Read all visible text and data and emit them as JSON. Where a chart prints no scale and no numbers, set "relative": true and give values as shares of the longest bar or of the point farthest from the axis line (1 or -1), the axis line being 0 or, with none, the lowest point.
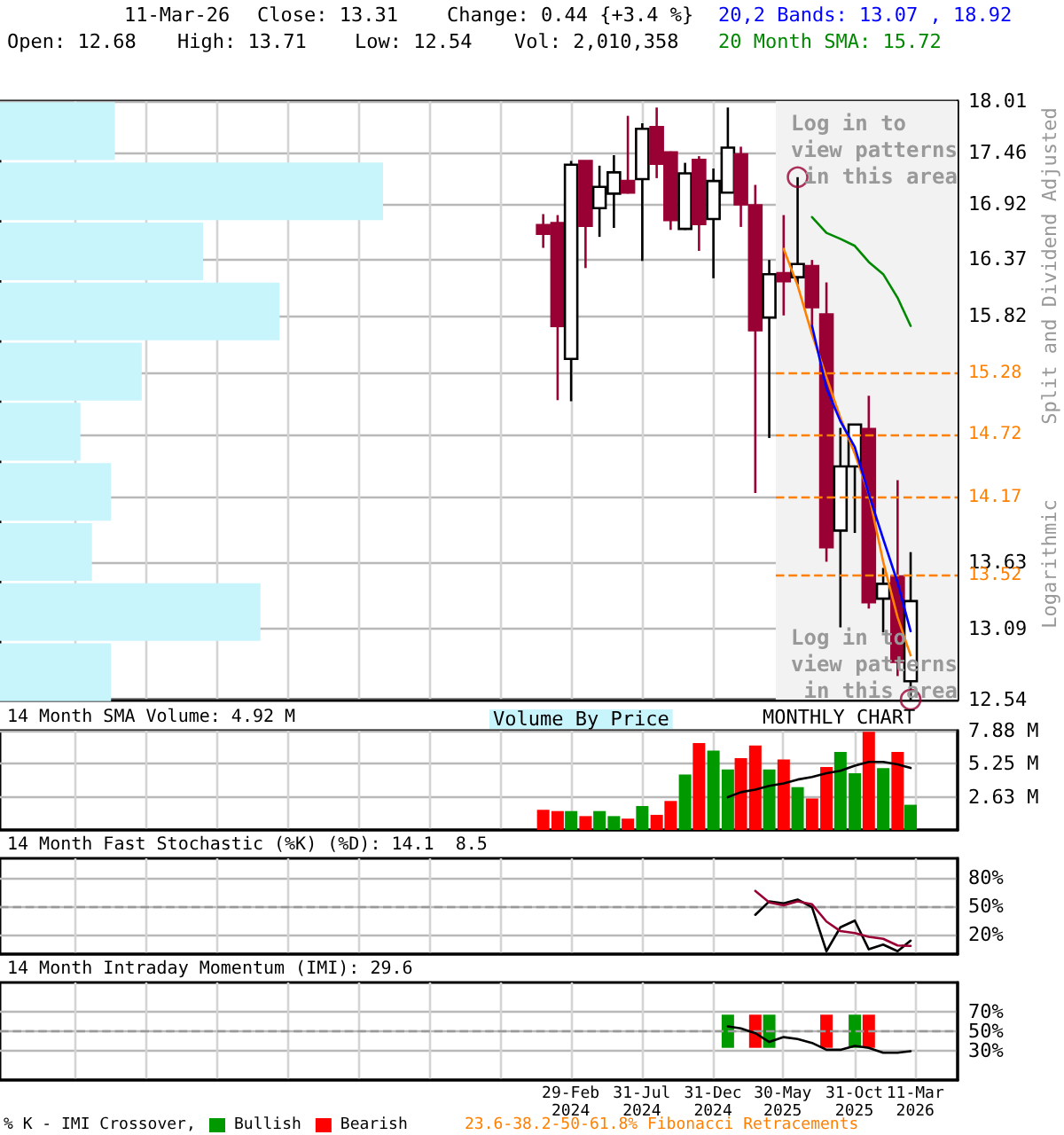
{
  "chart_data": [
    {
      "type": "bar",
      "orientation": "horizontal",
      "relative": true,
      "categories": [
        null,
        null,
        null,
        null,
        null,
        null,
        null,
        null,
        null,
        null
      ],
      "color": "#c8f4fc",
      "values": [
        0.3,
        1,
        0.53,
        0.73,
        0.37,
        0.21,
        0.29,
        0.24,
        0.68,
        0.29
      ],
      "annotations": [
        "Volume By Price"
      ]
    },
    {
      "type": "candlestick",
      "log": true,
      "grid": true,
      "tick_labels": "y",
      "ylabel": "Split and Dividend Adjusted",
      "x": [
        "2024-01",
        "2024-02",
        "2024-03",
        "2024-04",
        "2024-05",
        "2024-06",
        "2024-07",
        "2024-08",
        "2024-09",
        "2024-10",
        "2024-11",
        "2024-12",
        "2025-01",
        "2025-02",
        "2025-03",
        "2025-04",
        "2025-05",
        "2025-06",
        "2025-07",
        "2025-08",
        "2025-09",
        "2025-10",
        "2025-11",
        "2025-12",
        "2026-01",
        "2026-02",
        "2026-03"
      ],
      "ohlc": [
        [
          16.71,
          16.82,
          16.48,
          16.62
        ],
        [
          16.73,
          16.81,
          15.03,
          15.72
        ],
        [
          15.41,
          17.37,
          15.02,
          17.33
        ],
        [
          17.37,
          17.37,
          16.28,
          16.7
        ],
        [
          16.88,
          17.32,
          16.59,
          17.1
        ],
        [
          17.03,
          17.43,
          16.68,
          17.25
        ],
        [
          17.16,
          17.85,
          17.03,
          17.04
        ],
        [
          17.18,
          17.77,
          16.35,
          17.71
        ],
        [
          17.73,
          17.94,
          17.19,
          17.34
        ],
        [
          17.46,
          17.47,
          16.66,
          16.76
        ],
        [
          16.67,
          17.35,
          16.66,
          17.24
        ],
        [
          17.38,
          17.42,
          16.45,
          16.72
        ],
        [
          16.77,
          17.29,
          16.18,
          17.16
        ],
        [
          17.04,
          17.94,
          17.04,
          17.51
        ],
        [
          17.44,
          17.52,
          16.69,
          16.92
        ],
        [
          16.91,
          17.12,
          14.21,
          15.68
        ],
        [
          15.8,
          16.36,
          14.69,
          16.22
        ],
        [
          16.23,
          16.81,
          15.82,
          16.15
        ],
        [
          16.19,
          17.2,
          16.12,
          16.32
        ],
        [
          16.3,
          16.36,
          15.72,
          15.9
        ],
        [
          15.83,
          16.14,
          13.63,
          13.75
        ],
        [
          13.89,
          14.78,
          13.1,
          14.44
        ],
        [
          14.44,
          14.81,
          13.87,
          14.81
        ],
        [
          14.77,
          15.07,
          13.25,
          13.3
        ],
        [
          13.33,
          13.58,
          13.06,
          13.45
        ],
        [
          13.51,
          14.32,
          12.72,
          12.83
        ],
        [
          12.68,
          13.71,
          12.54,
          13.31
        ]
      ],
      "colors": [
        "#990033",
        "#990033",
        "#ffffff",
        "#990033",
        "#ffffff",
        "#ffffff",
        "#990033",
        "#ffffff",
        "#990033",
        "#990033",
        "#ffffff",
        "#990033",
        "#ffffff",
        "#ffffff",
        "#990033",
        "#990033",
        "#ffffff",
        "#990033",
        "#ffffff",
        "#990033",
        "#990033",
        "#ffffff",
        "#ffffff",
        "#990033",
        "#ffffff",
        "#990033",
        "#ffffff"
      ],
      "series": [
        {
          "type": "line",
          "color": "#008800",
          "marker": "none",
          "line_style": "solid",
          "x": [
            "2025-08",
            "2025-09",
            "2025-10",
            "2025-11",
            "2025-12",
            "2026-01",
            "2026-02",
            "2026-03"
          ],
          "values": [
            16.79,
            16.63,
            16.57,
            16.5,
            16.34,
            16.22,
            15.99,
            15.72
          ]
        },
        {
          "type": "line",
          "color": "#ff8000",
          "marker": "none",
          "line_style": "solid",
          "x": [
            "2025-06",
            "2025-07",
            "2025-08",
            "2025-09",
            "2025-10",
            "2025-11",
            "2025-12",
            "2026-01",
            "2026-02",
            "2026-03"
          ],
          "values": [
            16.47,
            16.11,
            15.64,
            15.24,
            14.87,
            14.55,
            14.2,
            13.63,
            13.18,
            12.88
          ]
        },
        {
          "type": "line",
          "color": "#0000ff",
          "marker": "none",
          "line_style": "solid",
          "x": [
            "2025-08",
            "2025-09",
            "2025-10",
            "2025-11",
            "2025-12",
            "2026-01",
            "2026-02",
            "2026-03"
          ],
          "values": [
            15.72,
            15.14,
            14.84,
            14.61,
            14.2,
            13.82,
            13.46,
            13.07
          ]
        },
        {
          "type": "scatter",
          "color": "#990033",
          "marker": "circle",
          "x": [
            "2025-07",
            "2026-03"
          ],
          "values": [
            17.2,
            12.54
          ]
        }
      ],
      "xlim": [
        "2020-10-20",
        "2026-06-10"
      ],
      "xticks": [
        {
          "value": "2021-03-31",
          "label": null
        },
        {
          "value": "2021-08-31",
          "label": null
        },
        {
          "value": "2022-01-31",
          "label": null
        },
        {
          "value": "2022-06-30",
          "label": null
        },
        {
          "value": "2022-11-30",
          "label": null
        },
        {
          "value": "2023-04-30",
          "label": null
        },
        {
          "value": "2023-09-30",
          "label": null
        },
        {
          "value": "2024-02-29",
          "label": null
        },
        {
          "value": "2024-07-31",
          "label": null
        },
        {
          "value": "2024-12-31",
          "label": null
        },
        {
          "value": "2025-05-30",
          "label": null
        },
        {
          "value": "2025-10-31",
          "label": null
        },
        {
          "value": "2026-03-11",
          "label": null
        }
      ],
      "ylim": [
        12.54,
        18.01
      ],
      "yticks": [
        12.54,
        13.09,
        13.63,
        {
          "value": 14.17,
          "label": null
        },
        {
          "value": 14.72,
          "label": null
        },
        {
          "value": 15.28,
          "label": null
        },
        15.82,
        16.37,
        16.92,
        17.46,
        18.01
      ],
      "ref_lines": [
        {
          "axis": "y",
          "value": 15.28,
          "label": "15.28",
          "color": "#ff8000",
          "line_style": "dashed"
        },
        {
          "axis": "y",
          "value": 14.72,
          "label": "14.72",
          "color": "#ff8000",
          "line_style": "dashed"
        },
        {
          "axis": "y",
          "value": 14.17,
          "label": "14.17",
          "color": "#ff8000",
          "line_style": "dashed"
        },
        {
          "axis": "y",
          "value": 13.52,
          "label": "13.52",
          "color": "#ff8000",
          "line_style": "dashed"
        }
      ],
      "bands": [
        {
          "axis": "x",
          "from": "2025-05-15",
          "to": "2026-06-10",
          "color": "#f2f2f2"
        }
      ],
      "annotations": [
        "11-Mar-26",
        "Close: 13.31",
        "Change: 0.44 {+3.4 %}",
        "Open: 12.68",
        "High: 13.71",
        "Low: 12.54",
        "Vol: 2,010,358",
        "20,2 Bands: 13.07 , 18.92",
        "20 Month SMA: 15.72",
        "Log in to view patterns in this area",
        "Log in to view patterns in this area",
        "Logarithmic"
      ]
    },
    {
      "type": "bar",
      "title": "14 Month SMA Volume: 4.92 M",
      "grid": true,
      "tick_labels": "y",
      "x": [
        "2024-01",
        "2024-02",
        "2024-03",
        "2024-04",
        "2024-05",
        "2024-06",
        "2024-07",
        "2024-08",
        "2024-09",
        "2024-10",
        "2024-11",
        "2024-12",
        "2025-01",
        "2025-02",
        "2025-03",
        "2025-04",
        "2025-05",
        "2025-06",
        "2025-07",
        "2025-08",
        "2025-09",
        "2025-10",
        "2025-11",
        "2025-12",
        "2026-01",
        "2026-02",
        "2026-03"
      ],
      "values": [
        1.6,
        1.5,
        1.5,
        1.1,
        1.5,
        1.1,
        0.9,
        1.9,
        1.2,
        2.3,
        4.4,
        6.9,
        6.3,
        4.8,
        5.7,
        6.7,
        4.8,
        5.6,
        3.4,
        2.5,
        5.0,
        6.2,
        4.5,
        7.8,
        4.9,
        6.2,
        2.0
      ],
      "colors": [
        "#ff0000",
        "#ff0000",
        "#009900",
        "#ff0000",
        "#009900",
        "#009900",
        "#ff0000",
        "#009900",
        "#ff0000",
        "#ff0000",
        "#009900",
        "#ff0000",
        "#009900",
        "#009900",
        "#ff0000",
        "#ff0000",
        "#009900",
        "#ff0000",
        "#009900",
        "#ff0000",
        "#ff0000",
        "#009900",
        "#009900",
        "#ff0000",
        "#009900",
        "#ff0000",
        "#009900"
      ],
      "series": [
        {
          "type": "line",
          "color": "#000000",
          "marker": "none",
          "line_style": "solid",
          "x": [
            "2025-02",
            "2025-03",
            "2025-04",
            "2025-05",
            "2025-06",
            "2025-07",
            "2025-08",
            "2025-09",
            "2025-10",
            "2025-11",
            "2025-12",
            "2026-01",
            "2026-02",
            "2026-03"
          ],
          "values": [
            2.6,
            3.0,
            3.2,
            3.5,
            3.7,
            4.0,
            4.2,
            4.5,
            4.7,
            5.1,
            5.4,
            5.4,
            5.2,
            4.92
          ]
        }
      ],
      "xlim": [
        "2020-10-20",
        "2026-06-10"
      ],
      "xticks": [
        {
          "value": "2021-03-31",
          "label": null
        },
        {
          "value": "2021-08-31",
          "label": null
        },
        {
          "value": "2022-01-31",
          "label": null
        },
        {
          "value": "2022-06-30",
          "label": null
        },
        {
          "value": "2022-11-30",
          "label": null
        },
        {
          "value": "2023-04-30",
          "label": null
        },
        {
          "value": "2023-09-30",
          "label": null
        },
        {
          "value": "2024-02-29",
          "label": null
        },
        {
          "value": "2024-07-31",
          "label": null
        },
        {
          "value": "2024-12-31",
          "label": null
        },
        {
          "value": "2025-05-30",
          "label": null
        },
        {
          "value": "2025-10-31",
          "label": null
        },
        {
          "value": "2026-03-11",
          "label": null
        }
      ],
      "ylim": [
        0,
        7.88
      ],
      "yticks": [
        {
          "value": 2.63,
          "label": "2.63 M"
        },
        {
          "value": 5.25,
          "label": "5.25 M"
        },
        {
          "value": 7.88,
          "label": "7.88 M"
        }
      ],
      "annotations": [
        "MONTHLY CHART"
      ]
    },
    {
      "type": "line",
      "title": "14 Month Fast Stochastic (%K) (%D): 14.1  8.5",
      "grid": true,
      "tick_labels": "y",
      "series": [
        {
          "color": "#000000",
          "marker": "none",
          "line_style": "solid",
          "x": [
            "2025-04",
            "2025-05",
            "2025-06",
            "2025-07",
            "2025-08",
            "2025-09",
            "2025-10",
            "2025-11",
            "2025-12",
            "2026-01",
            "2026-02",
            "2026-03"
          ],
          "values": [
            41,
            55,
            53,
            57,
            49,
            3,
            28,
            35,
            5,
            10,
            3,
            14.1
          ]
        },
        {
          "color": "#990033",
          "marker": "none",
          "line_style": "solid",
          "x": [
            "2025-04",
            "2025-05",
            "2025-06",
            "2025-07",
            "2025-08",
            "2025-09",
            "2025-10",
            "2025-11",
            "2025-12",
            "2026-01",
            "2026-02",
            "2026-03"
          ],
          "values": [
            66,
            54,
            51,
            55,
            52,
            34,
            24,
            22,
            18,
            16,
            9,
            8.5
          ]
        }
      ],
      "xlim": [
        "2020-10-20",
        "2026-06-10"
      ],
      "xticks": [
        {
          "value": "2021-03-31",
          "label": null
        },
        {
          "value": "2021-08-31",
          "label": null
        },
        {
          "value": "2022-01-31",
          "label": null
        },
        {
          "value": "2022-06-30",
          "label": null
        },
        {
          "value": "2022-11-30",
          "label": null
        },
        {
          "value": "2023-04-30",
          "label": null
        },
        {
          "value": "2023-09-30",
          "label": null
        },
        {
          "value": "2024-02-29",
          "label": null
        },
        {
          "value": "2024-07-31",
          "label": null
        },
        {
          "value": "2024-12-31",
          "label": null
        },
        {
          "value": "2025-05-30",
          "label": null
        },
        {
          "value": "2025-10-31",
          "label": null
        },
        {
          "value": "2026-03-11",
          "label": null
        }
      ],
      "ylim": [
        0,
        100
      ],
      "yticks": [
        {
          "value": 20,
          "label": "20%"
        },
        {
          "value": 50,
          "label": "50%"
        },
        {
          "value": 80,
          "label": "80%"
        }
      ],
      "ref_lines": [
        {
          "axis": "y",
          "value": 50,
          "color": "#999999",
          "line_style": "dashed"
        }
      ]
    },
    {
      "type": "line",
      "title": "14 Month Intraday Momentum (IMI): 29.6",
      "grid": true,
      "legend": "bottom",
      "legend_title": "% K - IMI Crossover,",
      "series": [
        {
          "color": "#000000",
          "marker": "none",
          "line_style": "solid",
          "x": [
            "2025-02",
            "2025-03",
            "2025-04",
            "2025-05",
            "2025-06",
            "2025-07",
            "2025-08",
            "2025-09",
            "2025-10",
            "2025-11",
            "2025-12",
            "2026-01",
            "2026-02",
            "2026-03"
          ],
          "values": [
            55,
            53,
            48,
            39,
            44,
            42,
            38,
            31,
            31,
            35,
            33,
            28,
            28,
            29.6
          ]
        },
        {
          "type": "bar",
          "name": "Bullish",
          "color": "#009900",
          "x": [
            "2025-02",
            "2025-05",
            "2025-11"
          ],
          "base": [
            33,
            33,
            33
          ],
          "values": [
            34,
            34,
            34
          ]
        },
        {
          "type": "bar",
          "name": "Bearish",
          "color": "#ff0000",
          "x": [
            "2025-04",
            "2025-09",
            "2025-12"
          ],
          "base": [
            33,
            33,
            33
          ],
          "values": [
            34,
            34,
            34
          ]
        }
      ],
      "xlim": [
        "2020-10-20",
        "2026-06-10"
      ],
      "xticks": [
        {
          "value": "2021-03-31",
          "label": null
        },
        {
          "value": "2021-08-31",
          "label": null
        },
        {
          "value": "2022-01-31",
          "label": null
        },
        {
          "value": "2022-06-30",
          "label": null
        },
        {
          "value": "2022-11-30",
          "label": null
        },
        {
          "value": "2023-04-30",
          "label": null
        },
        {
          "value": "2023-09-30",
          "label": null
        },
        {
          "value": "2024-02-29",
          "label": "29-Feb 2024"
        },
        {
          "value": "2024-07-31",
          "label": "31-Jul 2024"
        },
        {
          "value": "2024-12-31",
          "label": "31-Dec 2024"
        },
        {
          "value": "2025-05-30",
          "label": "30-May 2025"
        },
        {
          "value": "2025-10-31",
          "label": "31-Oct 2025"
        },
        {
          "value": "2026-03-11",
          "label": "11-Mar 2026"
        }
      ],
      "ylim": [
        0,
        100
      ],
      "yticks": [
        {
          "value": 30,
          "label": "30%"
        },
        {
          "value": 50,
          "label": "50%"
        },
        {
          "value": 70,
          "label": "70%"
        }
      ],
      "ref_lines": [
        {
          "axis": "y",
          "value": 50,
          "color": "#999999",
          "line_style": "dashed"
        }
      ],
      "annotations": [
        "23.6-38.2-50-61.8% Fibonacci Retracements"
      ]
    }
  ]
}
